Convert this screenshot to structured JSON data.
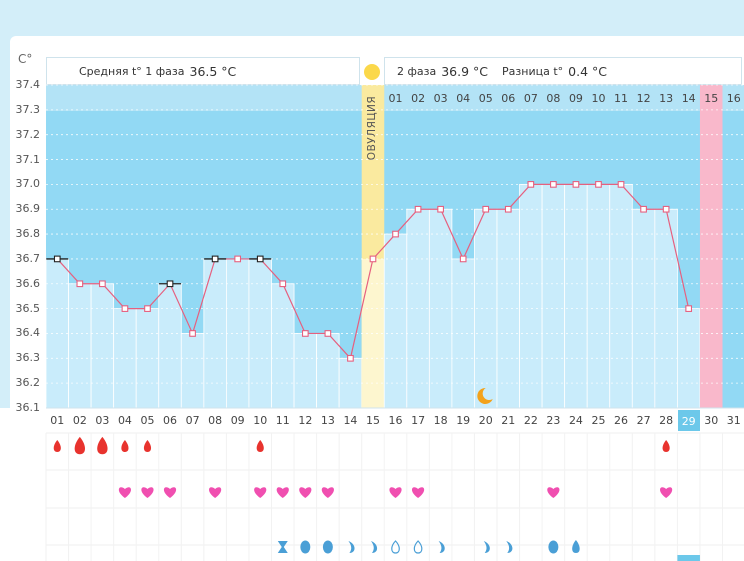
{
  "axis": {
    "unit": "C°"
  },
  "header": {
    "phase1_label": "Средняя t° 1 фаза",
    "phase1_value": "36.5 °C",
    "phase2_label": "2 фаза",
    "phase2_value": "36.9 °C",
    "diff_label": "Разница t°",
    "diff_value": "0.4 °C"
  },
  "ovulation_label": "ОВУЛЯЦИЯ",
  "phase2_day_numbers": [
    "01",
    "02",
    "03",
    "04",
    "05",
    "06",
    "07",
    "08",
    "09",
    "10",
    "11",
    "12",
    "13",
    "14",
    "15",
    "16"
  ],
  "today_index": 28,
  "colors": {
    "line": "#e6607f",
    "bar": "#c9ecfb",
    "background": "#92d9f4",
    "ovulation": "#faea9f",
    "period": "#f9b8cb",
    "today": "#6cc8ea"
  },
  "symbols": {
    "drops": [
      {
        "i": 0,
        "s": "s"
      },
      {
        "i": 1,
        "s": "l"
      },
      {
        "i": 2,
        "s": "l"
      },
      {
        "i": 3,
        "s": "s"
      },
      {
        "i": 4,
        "s": "s"
      },
      {
        "i": 9,
        "s": "s"
      },
      {
        "i": 27,
        "s": "s"
      }
    ],
    "hearts": [
      3,
      4,
      5,
      7,
      9,
      10,
      11,
      12,
      15,
      16,
      22,
      27
    ],
    "moon_index": 19,
    "row3": [
      {
        "i": 10,
        "t": "hourglass"
      },
      {
        "i": 11,
        "t": "oval"
      },
      {
        "i": 12,
        "t": "oval"
      },
      {
        "i": 13,
        "t": "curl"
      },
      {
        "i": 14,
        "t": "curl"
      },
      {
        "i": 15,
        "t": "ring"
      },
      {
        "i": 16,
        "t": "ring"
      },
      {
        "i": 17,
        "t": "curl"
      },
      {
        "i": 19,
        "t": "curl"
      },
      {
        "i": 20,
        "t": "curl"
      },
      {
        "i": 22,
        "t": "oval"
      },
      {
        "i": 23,
        "t": "drop"
      }
    ]
  },
  "chart_data": {
    "type": "line",
    "title": "",
    "xlabel": "",
    "ylabel": "C°",
    "ylim": [
      36.1,
      37.4
    ],
    "yticks": [
      "37.4",
      "37.3",
      "37.2",
      "37.1",
      "37.0",
      "36.9",
      "36.8",
      "36.7",
      "36.6",
      "36.5",
      "36.4",
      "36.3",
      "36.2",
      "36.1"
    ],
    "categories": [
      "01",
      "02",
      "03",
      "04",
      "05",
      "06",
      "07",
      "08",
      "09",
      "10",
      "11",
      "12",
      "13",
      "14",
      "15",
      "16",
      "17",
      "18",
      "19",
      "20",
      "21",
      "22",
      "23",
      "24",
      "25",
      "26",
      "27",
      "28",
      "29",
      "30",
      "31"
    ],
    "series": [
      {
        "name": "Temperature",
        "values": [
          36.7,
          36.6,
          36.6,
          36.5,
          36.5,
          36.6,
          36.4,
          36.7,
          36.7,
          36.7,
          36.6,
          36.4,
          36.4,
          36.3,
          36.7,
          36.8,
          36.9,
          36.9,
          36.7,
          36.9,
          36.9,
          37.0,
          37.0,
          37.0,
          37.0,
          37.0,
          36.9,
          36.9,
          36.5,
          null,
          null
        ]
      }
    ],
    "marker_style": [
      "black",
      "pink",
      "pink",
      "pink",
      "pink",
      "black",
      "pink",
      "black",
      "pink",
      "black",
      "pink",
      "pink",
      "pink",
      "pink",
      "pink",
      "pink",
      "pink",
      "pink",
      "pink",
      "pink",
      "pink",
      "pink",
      "pink",
      "pink",
      "pink",
      "pink",
      "pink",
      "pink",
      "pink",
      null,
      null
    ],
    "ovulation_day": "15",
    "period_day_index": 29
  }
}
